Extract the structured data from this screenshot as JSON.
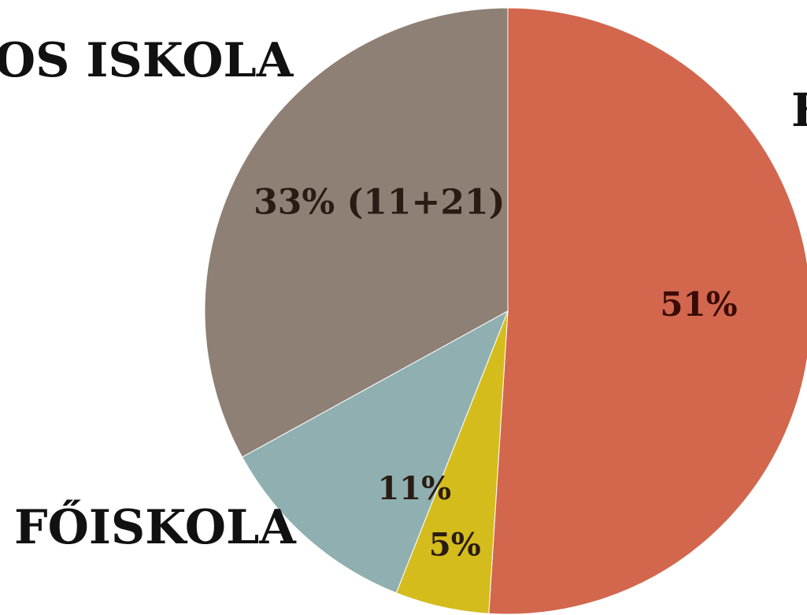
{
  "chart_data": {
    "type": "pie",
    "title": "",
    "start_angle_deg": 0,
    "direction": "clockwise",
    "slices": [
      {
        "value": 51,
        "label": "51%",
        "color": "#d2674d"
      },
      {
        "value": 5,
        "label": "5%",
        "color": "#d4bc1c"
      },
      {
        "value": 11,
        "label": "11%",
        "color": "#8fafb0"
      },
      {
        "value": 33,
        "label": "33% (11+21)",
        "color": "#8e8075"
      }
    ],
    "outer_labels": [
      {
        "text": "NOS ISKOLA"
      },
      {
        "text": "K"
      },
      {
        "text": "FŐISKOLA"
      }
    ]
  }
}
